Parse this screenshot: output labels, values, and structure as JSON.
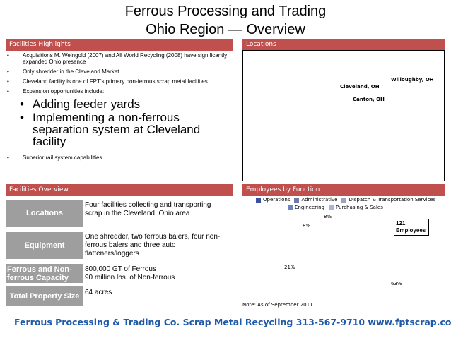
{
  "title": {
    "line1": "Ferrous Processing and Trading",
    "line2": "Ohio Region — Overview"
  },
  "sections": {
    "highlights": "Facilities Highlights",
    "locations": "Locations",
    "overview": "Facilities Overview",
    "employees": "Employees by Function"
  },
  "highlights": {
    "b1": "Acquisitions M. Weingold (2007) and All World Recycling (2008) have significantly expanded Ohio presence",
    "b2": "Only shredder in the Cleveland Market",
    "b3": "Cleveland facility is one of FPT’s primary non-ferrous scrap metal facilities",
    "b4": "Expansion opportunities include:",
    "s1": "Adding feeder yards",
    "s2": "Implementing a non-ferrous separation system at Cleveland facility",
    "b5": "Superior rail system capabilities"
  },
  "cities": {
    "willoughby": "Willoughby, OH",
    "cleveland": "Cleveland, OH",
    "canton": "Canton, OH"
  },
  "overview": {
    "locations_label": "Locations",
    "locations_text": "Four facilities collecting and transporting scrap in the Cleveland, Ohio area",
    "equipment_label": "Equipment",
    "equipment_text": "One shredder, two ferrous balers, four non-ferrous balers and three auto flatteners/loggers",
    "capacity_label": "Ferrous and Non-ferrous Capacity",
    "capacity_line1": "800,000 GT of Ferrous",
    "capacity_line2": "90 million lbs. of Non-ferrous",
    "property_label": "Total Property Size",
    "property_text": "64 acres"
  },
  "chart_data": {
    "type": "pie",
    "title": "",
    "series": [
      {
        "name": "Operations",
        "value": 63,
        "color": "#3b4fa0"
      },
      {
        "name": "Administrative",
        "value": 21,
        "color": "#6f7aa8"
      },
      {
        "name": "Dispatch & Transportation Services",
        "value": 8,
        "color": "#9ea4b8"
      },
      {
        "name": "Engineering",
        "value": 0,
        "color": "#6a84c0"
      },
      {
        "name": "Purchasing & Sales",
        "value": 8,
        "color": "#a7b6d6"
      }
    ],
    "data_labels": {
      "p1": "8%",
      "p2": "8%",
      "p3": "21%",
      "p4": "63%"
    },
    "legend": {
      "l1": "Operations",
      "l2": "Administrative",
      "l3": "Dispatch & Transportation Services",
      "l4": "Engineering",
      "l5": "Purchasing & Sales"
    },
    "callout": {
      "count": "121",
      "label": "Employees"
    },
    "note": "Note: As of September 2011"
  },
  "footer": "Ferrous Processing & Trading Co. Scrap Metal Recycling 313-567-9710 www.fptscrap.com",
  "colors": {
    "section_bar": "#c0504d",
    "label_box": "#9e9e9e",
    "footer_text": "#1f5aa8"
  }
}
